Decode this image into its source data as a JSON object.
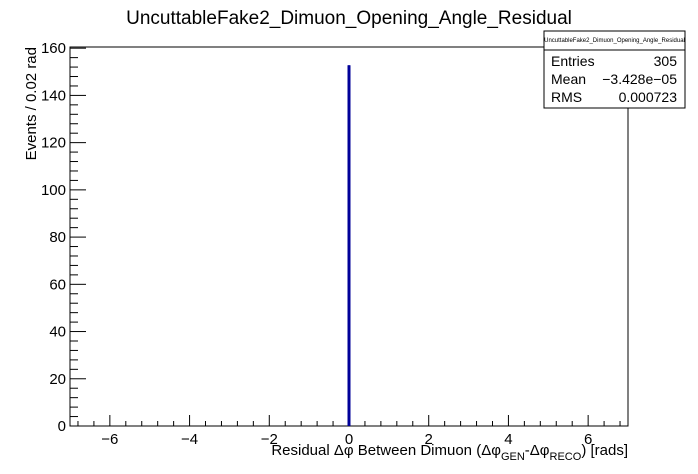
{
  "chart_data": {
    "type": "histogram",
    "title": "UncuttableFake2_Dimuon_Opening_Angle_Residual",
    "xlabel": {
      "prefix": "Residual ",
      "delta_phi": "Δφ",
      "middle": " Between Dimuon (",
      "gen_symbol": "Δφ",
      "gen_sub": "GEN",
      "dash": "-",
      "reco_symbol": "Δφ",
      "reco_sub": "RECO",
      "suffix": ") [rads]"
    },
    "ylabel": "Events / 0.02 rad",
    "xlim": [
      -7,
      7
    ],
    "ylim": [
      0,
      160.5
    ],
    "x_ticks": [
      -6,
      -4,
      -2,
      0,
      2,
      4,
      6
    ],
    "x_tick_labels": [
      "−6",
      "−4",
      "−2",
      "0",
      "2",
      "4",
      "6"
    ],
    "y_ticks": [
      0,
      20,
      40,
      60,
      80,
      100,
      120,
      140,
      160
    ],
    "y_tick_labels": [
      "0",
      "20",
      "40",
      "60",
      "80",
      "100",
      "120",
      "140",
      "160"
    ],
    "bin_width": 0.02,
    "series": [
      {
        "bins": [
          {
            "x_low": -0.02,
            "x_high": 0.0,
            "count": 152.5
          },
          {
            "x_low": 0.0,
            "x_high": 0.02,
            "count": 152.5
          }
        ]
      }
    ],
    "line_color": "#000099",
    "stats_box": {
      "title": "UncuttableFake2_Dimuon_Opening_Angle_Residual",
      "rows": [
        {
          "label": "Entries",
          "value": "305"
        },
        {
          "label": "Mean",
          "value": "−3.428e−05"
        },
        {
          "label": "RMS",
          "value": "0.000723"
        }
      ]
    },
    "grid": false
  }
}
